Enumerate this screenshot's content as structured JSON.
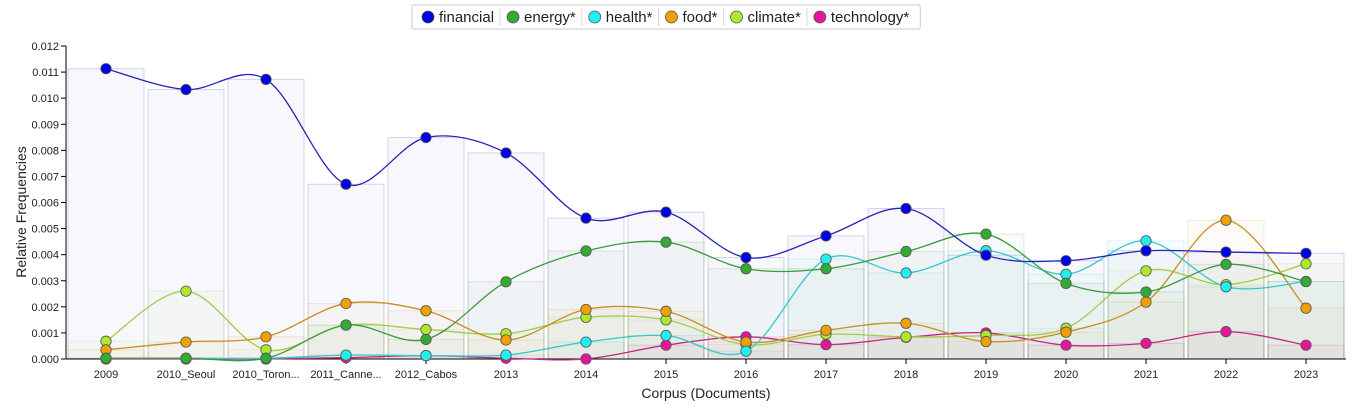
{
  "chart_data": {
    "type": "line",
    "xlabel": "Corpus (Documents)",
    "ylabel": "Relative Frequencies",
    "ylim": [
      0,
      0.012
    ],
    "yticks": [
      "0.000",
      "0.001",
      "0.002",
      "0.003",
      "0.004",
      "0.005",
      "0.006",
      "0.007",
      "0.008",
      "0.009",
      "0.010",
      "0.011",
      "0.012"
    ],
    "categories": [
      "2009",
      "2010_Seoul",
      "2010_Toron...",
      "2011_Canne...",
      "2012_Cabos",
      "2013",
      "2014",
      "2015",
      "2016",
      "2017",
      "2018",
      "2019",
      "2020",
      "2021",
      "2022",
      "2023"
    ],
    "legend_position": "top-center",
    "series": [
      {
        "name": "financial",
        "color": "#0000e6",
        "line_color": "#2424b8",
        "values": [
          0.01113,
          0.01033,
          0.01072,
          0.0067,
          0.00849,
          0.0079,
          0.0054,
          0.00563,
          0.00389,
          0.00472,
          0.00577,
          0.00398,
          0.00377,
          0.00415,
          0.0041,
          0.00405
        ]
      },
      {
        "name": "energy*",
        "color": "#33aa33",
        "line_color": "#3c9a3c",
        "values": [
          3e-05,
          3e-05,
          3e-05,
          0.0013,
          0.00075,
          0.00296,
          0.00414,
          0.00448,
          0.00346,
          0.00346,
          0.00412,
          0.00479,
          0.0029,
          0.00257,
          0.00363,
          0.00297
        ]
      },
      {
        "name": "health*",
        "color": "#22eeee",
        "line_color": "#33c8cc",
        "values": [
          3e-05,
          3e-05,
          3e-05,
          0.00015,
          0.00013,
          0.00015,
          0.00065,
          0.0009,
          0.0003,
          0.00383,
          0.0033,
          0.00415,
          0.00325,
          0.00453,
          0.00277,
          0.00297
        ]
      },
      {
        "name": "food*",
        "color": "#f0a000",
        "line_color": "#c8901e",
        "values": [
          0.00035,
          0.00065,
          0.00085,
          0.00213,
          0.00185,
          0.00073,
          0.0019,
          0.00183,
          0.00065,
          0.0011,
          0.00137,
          0.00067,
          0.00103,
          0.00218,
          0.00532,
          0.00195
        ]
      },
      {
        "name": "climate*",
        "color": "#b0e830",
        "line_color": "#a2cc46",
        "values": [
          0.00068,
          0.0026,
          0.00035,
          0.0013,
          0.00113,
          0.00097,
          0.0016,
          0.0015,
          0.00055,
          0.00095,
          0.00085,
          0.0009,
          0.00118,
          0.00338,
          0.00285,
          0.00365
        ]
      },
      {
        "name": "technology*",
        "color": "#e6149a",
        "line_color": "#c4287e",
        "values": [
          0.0,
          0.0,
          0.0,
          5e-05,
          0.00013,
          3e-05,
          0.0,
          0.00053,
          0.00085,
          0.00055,
          0.00083,
          0.001,
          0.00053,
          0.0006,
          0.00105,
          0.00053
        ]
      }
    ]
  }
}
